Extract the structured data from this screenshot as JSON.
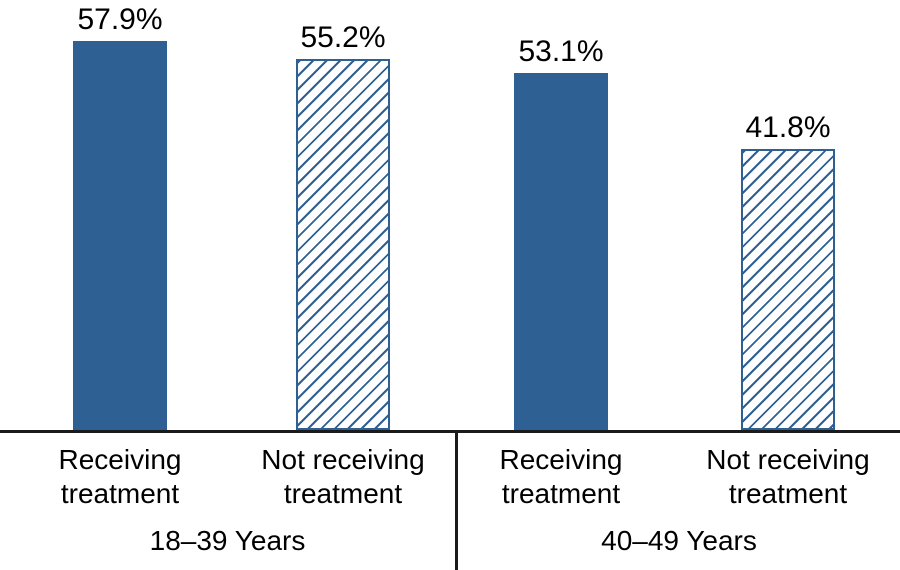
{
  "chart_data": {
    "type": "bar",
    "title": "",
    "xlabel": "",
    "ylabel": "",
    "ylim": [
      0,
      64
    ],
    "grid": false,
    "legend_position": "none",
    "data_labels": true,
    "categories": [
      "Receiving treatment",
      "Not receiving treatment"
    ],
    "group_labels": [
      "18–39 Years",
      "40–49 Years"
    ],
    "bars": [
      {
        "group": "18–39 Years",
        "category": "Receiving treatment",
        "value": 57.9,
        "value_label": "57.9%",
        "style": "solid"
      },
      {
        "group": "18–39 Years",
        "category": "Not receiving treatment",
        "value": 55.2,
        "value_label": "55.2%",
        "style": "hatched"
      },
      {
        "group": "40–49 Years",
        "category": "Receiving treatment",
        "value": 53.1,
        "value_label": "53.1%",
        "style": "solid"
      },
      {
        "group": "40–49 Years",
        "category": "Not receiving treatment",
        "value": 41.8,
        "value_label": "41.8%",
        "style": "hatched"
      }
    ],
    "colors": {
      "solid_fill": "#2e6094",
      "hatch_line": "#2e6094",
      "hatch_background": "#ffffff",
      "axis_line": "#1a1a1a",
      "text": "#000000"
    }
  }
}
